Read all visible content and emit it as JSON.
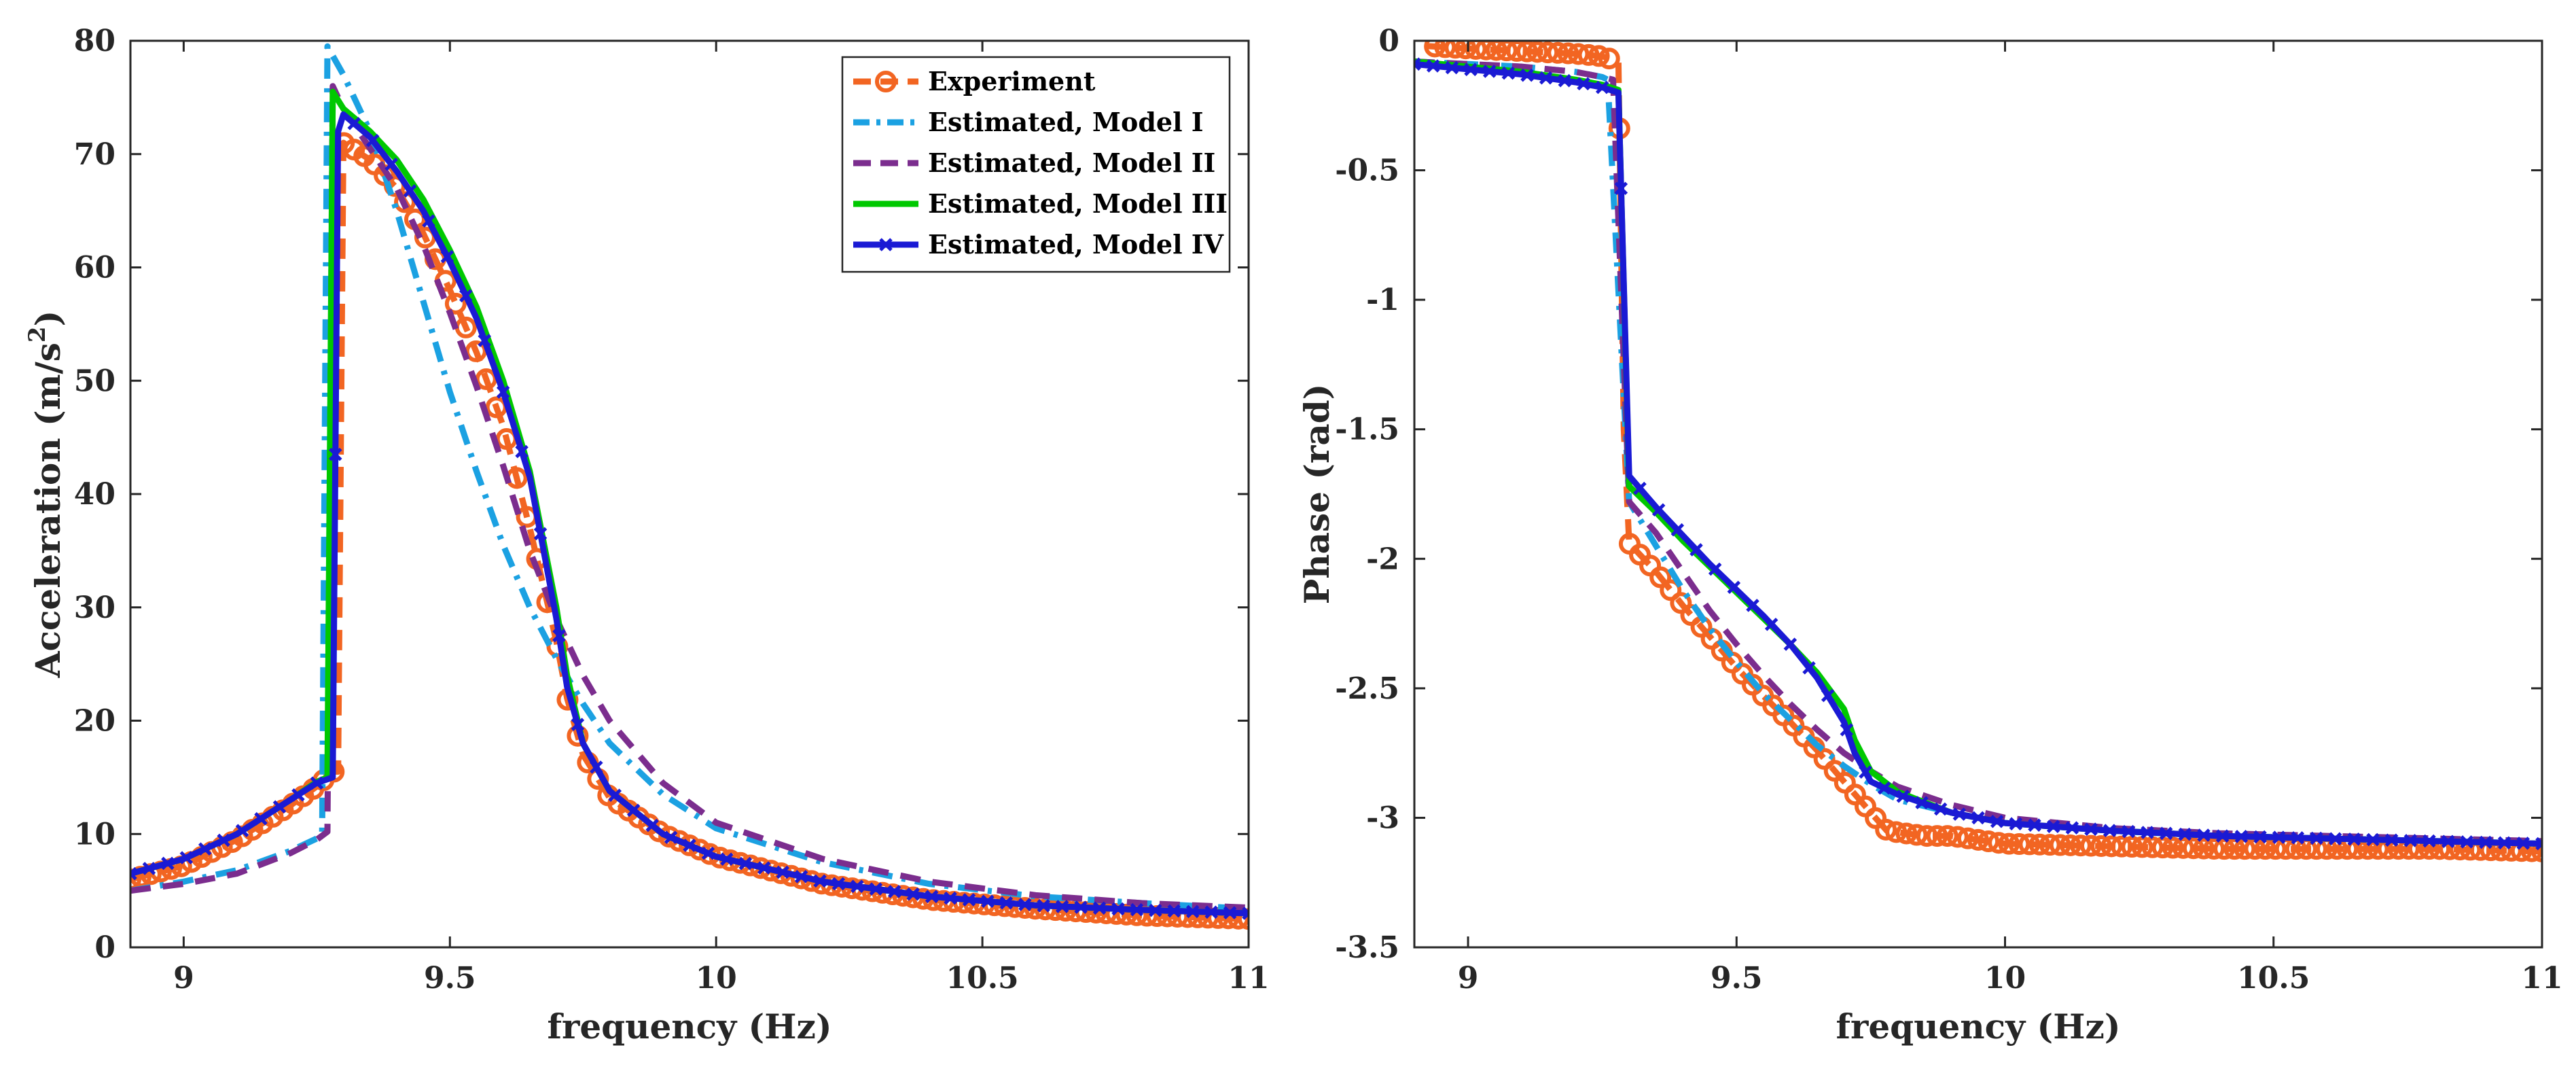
{
  "chart_data": [
    {
      "type": "line",
      "xlabel": "frequency (Hz)",
      "ylabel": "Acceleration (m/s",
      "ylabel_sup": "2",
      "ylabel_end": ")",
      "xlim": [
        8.9,
        11
      ],
      "ylim": [
        0,
        80
      ],
      "xticks": [
        "9",
        "9.5",
        "10",
        "10.5",
        "11"
      ],
      "yticks": [
        "0",
        "10",
        "20",
        "30",
        "40",
        "50",
        "60",
        "70",
        "80"
      ],
      "legend_position": "top-right",
      "series": [
        {
          "name": "Experiment",
          "color": "#f26522",
          "style": "dashed-circle",
          "x": [
            8.9,
            9.0,
            9.1,
            9.2,
            9.25,
            9.28,
            9.29,
            9.3,
            9.35,
            9.4,
            9.45,
            9.5,
            9.55,
            9.6,
            9.65,
            9.7,
            9.72,
            9.75,
            9.8,
            9.9,
            10.0,
            10.2,
            10.4,
            10.6,
            10.8,
            11.0
          ],
          "y": [
            6,
            7.2,
            9.5,
            12.5,
            14.2,
            15.5,
            15.5,
            71,
            69.5,
            67,
            63,
            58,
            52.5,
            46,
            37,
            27,
            22,
            17,
            13.2,
            10,
            8,
            5.6,
            4.2,
            3.4,
            2.8,
            2.5
          ]
        },
        {
          "name": "Estimated, Model I",
          "color": "#1ba1e2",
          "style": "dashdot",
          "x": [
            8.9,
            9.0,
            9.1,
            9.2,
            9.25,
            9.26,
            9.27,
            9.3,
            9.35,
            9.4,
            9.45,
            9.5,
            9.55,
            9.6,
            9.65,
            9.7,
            9.75,
            9.8,
            9.9,
            10.0,
            10.2,
            10.4,
            10.6,
            10.8,
            11.0
          ],
          "y": [
            5,
            5.8,
            6.8,
            8.5,
            9.6,
            10,
            79.5,
            77,
            72,
            65,
            57,
            49,
            42,
            35.5,
            30,
            25.5,
            21.5,
            18,
            13.5,
            10.5,
            7.5,
            5.6,
            4.5,
            3.9,
            3.4
          ]
        },
        {
          "name": "Estimated, Model II",
          "color": "#7b2d8e",
          "style": "dashed",
          "x": [
            8.9,
            9.0,
            9.1,
            9.2,
            9.25,
            9.27,
            9.28,
            9.3,
            9.35,
            9.4,
            9.45,
            9.5,
            9.55,
            9.6,
            9.65,
            9.7,
            9.75,
            9.8,
            9.9,
            10.0,
            10.2,
            10.4,
            10.6,
            10.8,
            11.0
          ],
          "y": [
            5,
            5.6,
            6.5,
            8.3,
            9.5,
            10.2,
            76,
            74,
            70.5,
            67,
            62,
            56,
            49.5,
            42.5,
            35,
            29,
            24,
            20,
            14.5,
            11,
            7.8,
            5.8,
            4.6,
            3.9,
            3.5
          ]
        },
        {
          "name": "Estimated, Model III",
          "color": "#00c800",
          "style": "solid",
          "x": [
            8.9,
            9.0,
            9.1,
            9.2,
            9.25,
            9.27,
            9.28,
            9.3,
            9.35,
            9.4,
            9.45,
            9.5,
            9.55,
            9.6,
            9.65,
            9.7,
            9.72,
            9.75,
            9.8,
            9.9,
            10.0,
            10.2,
            10.4,
            10.6,
            10.8,
            11.0
          ],
          "y": [
            6.5,
            7.8,
            10,
            13,
            14.6,
            15,
            75.5,
            74,
            72,
            69.5,
            66,
            61.5,
            56.5,
            50,
            42,
            30,
            24,
            18,
            13.8,
            10,
            8,
            5.8,
            4.5,
            3.7,
            3.3,
            3.0
          ]
        },
        {
          "name": "Estimated, Model IV",
          "color": "#1a1ad4",
          "style": "solid-x",
          "x": [
            8.9,
            9.0,
            9.1,
            9.2,
            9.25,
            9.28,
            9.29,
            9.3,
            9.35,
            9.4,
            9.45,
            9.5,
            9.55,
            9.6,
            9.65,
            9.7,
            9.72,
            9.75,
            9.8,
            9.9,
            10.0,
            10.2,
            10.4,
            10.6,
            10.8,
            11.0
          ],
          "y": [
            6.5,
            7.8,
            10,
            13,
            14.5,
            15,
            72,
            73.5,
            71.5,
            68.5,
            65,
            60.5,
            55.5,
            49,
            41.5,
            29,
            23,
            18,
            13.8,
            10,
            8,
            5.8,
            4.5,
            3.7,
            3.3,
            3.0
          ]
        }
      ]
    },
    {
      "type": "line",
      "xlabel": "frequency (Hz)",
      "ylabel": "Phase (rad)",
      "xlim": [
        8.9,
        11
      ],
      "ylim": [
        -3.5,
        0
      ],
      "xticks": [
        "9",
        "9.5",
        "10",
        "10.5",
        "11"
      ],
      "yticks": [
        "0",
        "-0.5",
        "-1",
        "-1.5",
        "-2",
        "-2.5",
        "-3",
        "-3.5"
      ],
      "series": [
        {
          "name": "Experiment",
          "color": "#f26522",
          "style": "dashed-circle",
          "x": [
            8.92,
            9.0,
            9.1,
            9.2,
            9.25,
            9.28,
            9.29,
            9.3,
            9.35,
            9.4,
            9.45,
            9.5,
            9.55,
            9.6,
            9.65,
            9.7,
            9.75,
            9.78,
            9.85,
            9.9,
            10.0,
            10.2,
            10.4,
            10.6,
            10.8,
            11.0
          ],
          "y": [
            -0.02,
            -0.03,
            -0.04,
            -0.05,
            -0.06,
            -0.08,
            -1.5,
            -1.94,
            -2.05,
            -2.18,
            -2.3,
            -2.42,
            -2.53,
            -2.63,
            -2.74,
            -2.86,
            -2.98,
            -3.05,
            -3.07,
            -3.07,
            -3.1,
            -3.11,
            -3.12,
            -3.12,
            -3.12,
            -3.13
          ]
        },
        {
          "name": "Estimated, Model I",
          "color": "#1ba1e2",
          "style": "dashdot",
          "x": [
            8.9,
            9.0,
            9.1,
            9.2,
            9.25,
            9.26,
            9.3,
            9.35,
            9.4,
            9.45,
            9.5,
            9.55,
            9.6,
            9.65,
            9.7,
            9.75,
            9.8,
            9.9,
            10.0,
            10.2,
            10.4,
            10.6,
            10.8,
            11.0
          ],
          "y": [
            -0.08,
            -0.09,
            -0.1,
            -0.12,
            -0.14,
            -0.15,
            -1.78,
            -1.95,
            -2.12,
            -2.27,
            -2.4,
            -2.52,
            -2.62,
            -2.72,
            -2.8,
            -2.87,
            -2.93,
            -2.98,
            -3.02,
            -3.05,
            -3.07,
            -3.08,
            -3.09,
            -3.1
          ]
        },
        {
          "name": "Estimated, Model II",
          "color": "#7b2d8e",
          "style": "dashed",
          "x": [
            8.9,
            9.0,
            9.1,
            9.2,
            9.25,
            9.27,
            9.3,
            9.35,
            9.4,
            9.45,
            9.5,
            9.55,
            9.6,
            9.65,
            9.7,
            9.75,
            9.8,
            9.9,
            10.0,
            10.2,
            10.4,
            10.6,
            10.8,
            11.0
          ],
          "y": [
            -0.08,
            -0.09,
            -0.1,
            -0.12,
            -0.14,
            -0.15,
            -1.78,
            -1.9,
            -2.05,
            -2.2,
            -2.33,
            -2.45,
            -2.56,
            -2.66,
            -2.75,
            -2.82,
            -2.88,
            -2.95,
            -3.0,
            -3.04,
            -3.06,
            -3.07,
            -3.08,
            -3.09
          ]
        },
        {
          "name": "Estimated, Model III",
          "color": "#00c800",
          "style": "solid",
          "x": [
            8.9,
            9.0,
            9.1,
            9.2,
            9.25,
            9.28,
            9.3,
            9.35,
            9.4,
            9.45,
            9.5,
            9.55,
            9.6,
            9.65,
            9.7,
            9.72,
            9.75,
            9.8,
            9.9,
            10.0,
            10.2,
            10.4,
            10.6,
            10.8,
            11.0
          ],
          "y": [
            -0.08,
            -0.1,
            -0.12,
            -0.15,
            -0.17,
            -0.19,
            -1.72,
            -1.82,
            -1.93,
            -2.03,
            -2.13,
            -2.23,
            -2.33,
            -2.44,
            -2.58,
            -2.7,
            -2.82,
            -2.9,
            -2.98,
            -3.02,
            -3.05,
            -3.07,
            -3.08,
            -3.09,
            -3.1
          ]
        },
        {
          "name": "Estimated, Model IV",
          "color": "#1a1ad4",
          "style": "solid-x",
          "x": [
            8.9,
            9.0,
            9.1,
            9.2,
            9.25,
            9.28,
            9.3,
            9.35,
            9.4,
            9.45,
            9.5,
            9.55,
            9.6,
            9.65,
            9.7,
            9.72,
            9.75,
            9.8,
            9.9,
            10.0,
            10.2,
            10.4,
            10.6,
            10.8,
            11.0
          ],
          "y": [
            -0.09,
            -0.11,
            -0.13,
            -0.16,
            -0.18,
            -0.2,
            -1.68,
            -1.8,
            -1.91,
            -2.02,
            -2.12,
            -2.22,
            -2.33,
            -2.46,
            -2.63,
            -2.75,
            -2.86,
            -2.91,
            -2.98,
            -3.02,
            -3.05,
            -3.07,
            -3.08,
            -3.09,
            -3.1
          ]
        }
      ]
    }
  ]
}
